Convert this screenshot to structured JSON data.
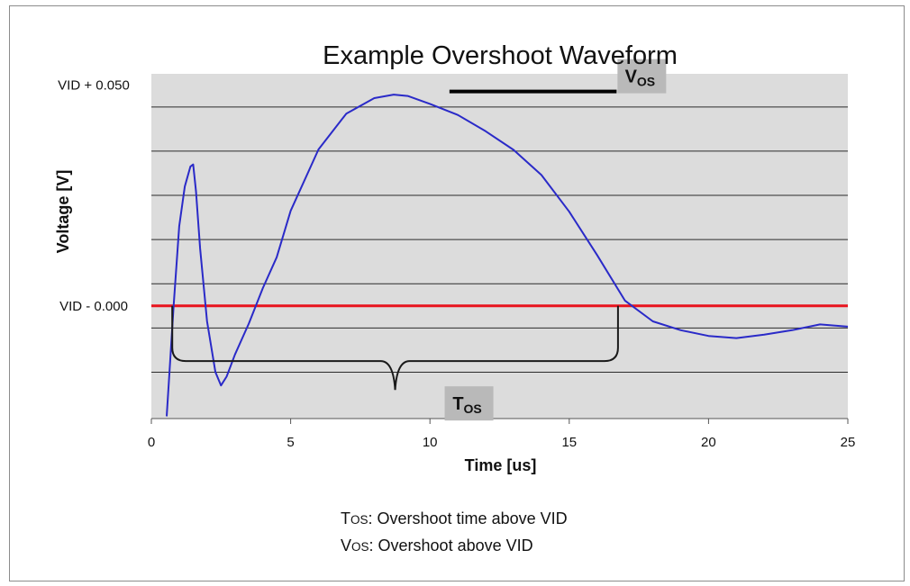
{
  "chart_data": {
    "type": "line",
    "title": "Example Overshoot Waveform",
    "xlabel": "Time [us]",
    "ylabel": "Voltage [V]",
    "xlim": [
      0,
      25
    ],
    "x_ticks": [
      0,
      5,
      10,
      15,
      20,
      25
    ],
    "ylim": [
      -0.0255,
      0.0525
    ],
    "y_tick_labels": [
      {
        "value": 0.05,
        "label": "VID + 0.050"
      },
      {
        "value": 0.0,
        "label": "VID - 0.000"
      }
    ],
    "gridlines_y": [
      -0.015,
      -0.005,
      0.005,
      0.015,
      0.025,
      0.035,
      0.045
    ],
    "grid": true,
    "background_color": "#dcdcdc",
    "series": [
      {
        "color": "#2a2ac8",
        "x": [
          0.55,
          0.65,
          0.8,
          1.0,
          1.2,
          1.4,
          1.5,
          1.6,
          1.75,
          2.0,
          2.3,
          2.5,
          2.7,
          3.0,
          3.5,
          4.0,
          4.5,
          5.0,
          6.0,
          7.0,
          8.0,
          8.7,
          9.2,
          10.0,
          11.0,
          12.0,
          13.0,
          14.0,
          15.0,
          16.0,
          17.0,
          18.0,
          19.0,
          20.0,
          21.0,
          22.0,
          23.0,
          24.0,
          25.0
        ],
        "y": [
          -0.025,
          -0.015,
          0.0,
          0.018,
          0.027,
          0.0315,
          0.032,
          0.026,
          0.013,
          -0.0035,
          -0.015,
          -0.018,
          -0.016,
          -0.011,
          -0.004,
          0.004,
          0.011,
          0.0215,
          0.0354,
          0.0435,
          0.047,
          0.0478,
          0.0475,
          0.0457,
          0.0432,
          0.0395,
          0.0353,
          0.0296,
          0.0213,
          0.0115,
          0.0012,
          -0.0035,
          -0.0055,
          -0.0068,
          -0.0073,
          -0.0065,
          -0.0055,
          -0.0042,
          -0.0047
        ]
      }
    ],
    "reference_line": {
      "y": 0.0,
      "color": "#e8141e"
    },
    "annotations": [
      {
        "kind": "bar",
        "label_main": "V",
        "label_sub": "OS",
        "x_start": 10.7,
        "x_end": 16.7,
        "y": 0.0485
      },
      {
        "kind": "brace",
        "label_main": "T",
        "label_sub": "OS",
        "x_start": 0.75,
        "x_end": 16.75,
        "y_top": 0.0,
        "y_bottom": -0.0125
      }
    ],
    "notes": [
      {
        "main": "T",
        "sub": "OS",
        "text": ": Overshoot time above VID"
      },
      {
        "main": "V",
        "sub": "OS",
        "text": ": Overshoot above VID"
      }
    ]
  }
}
